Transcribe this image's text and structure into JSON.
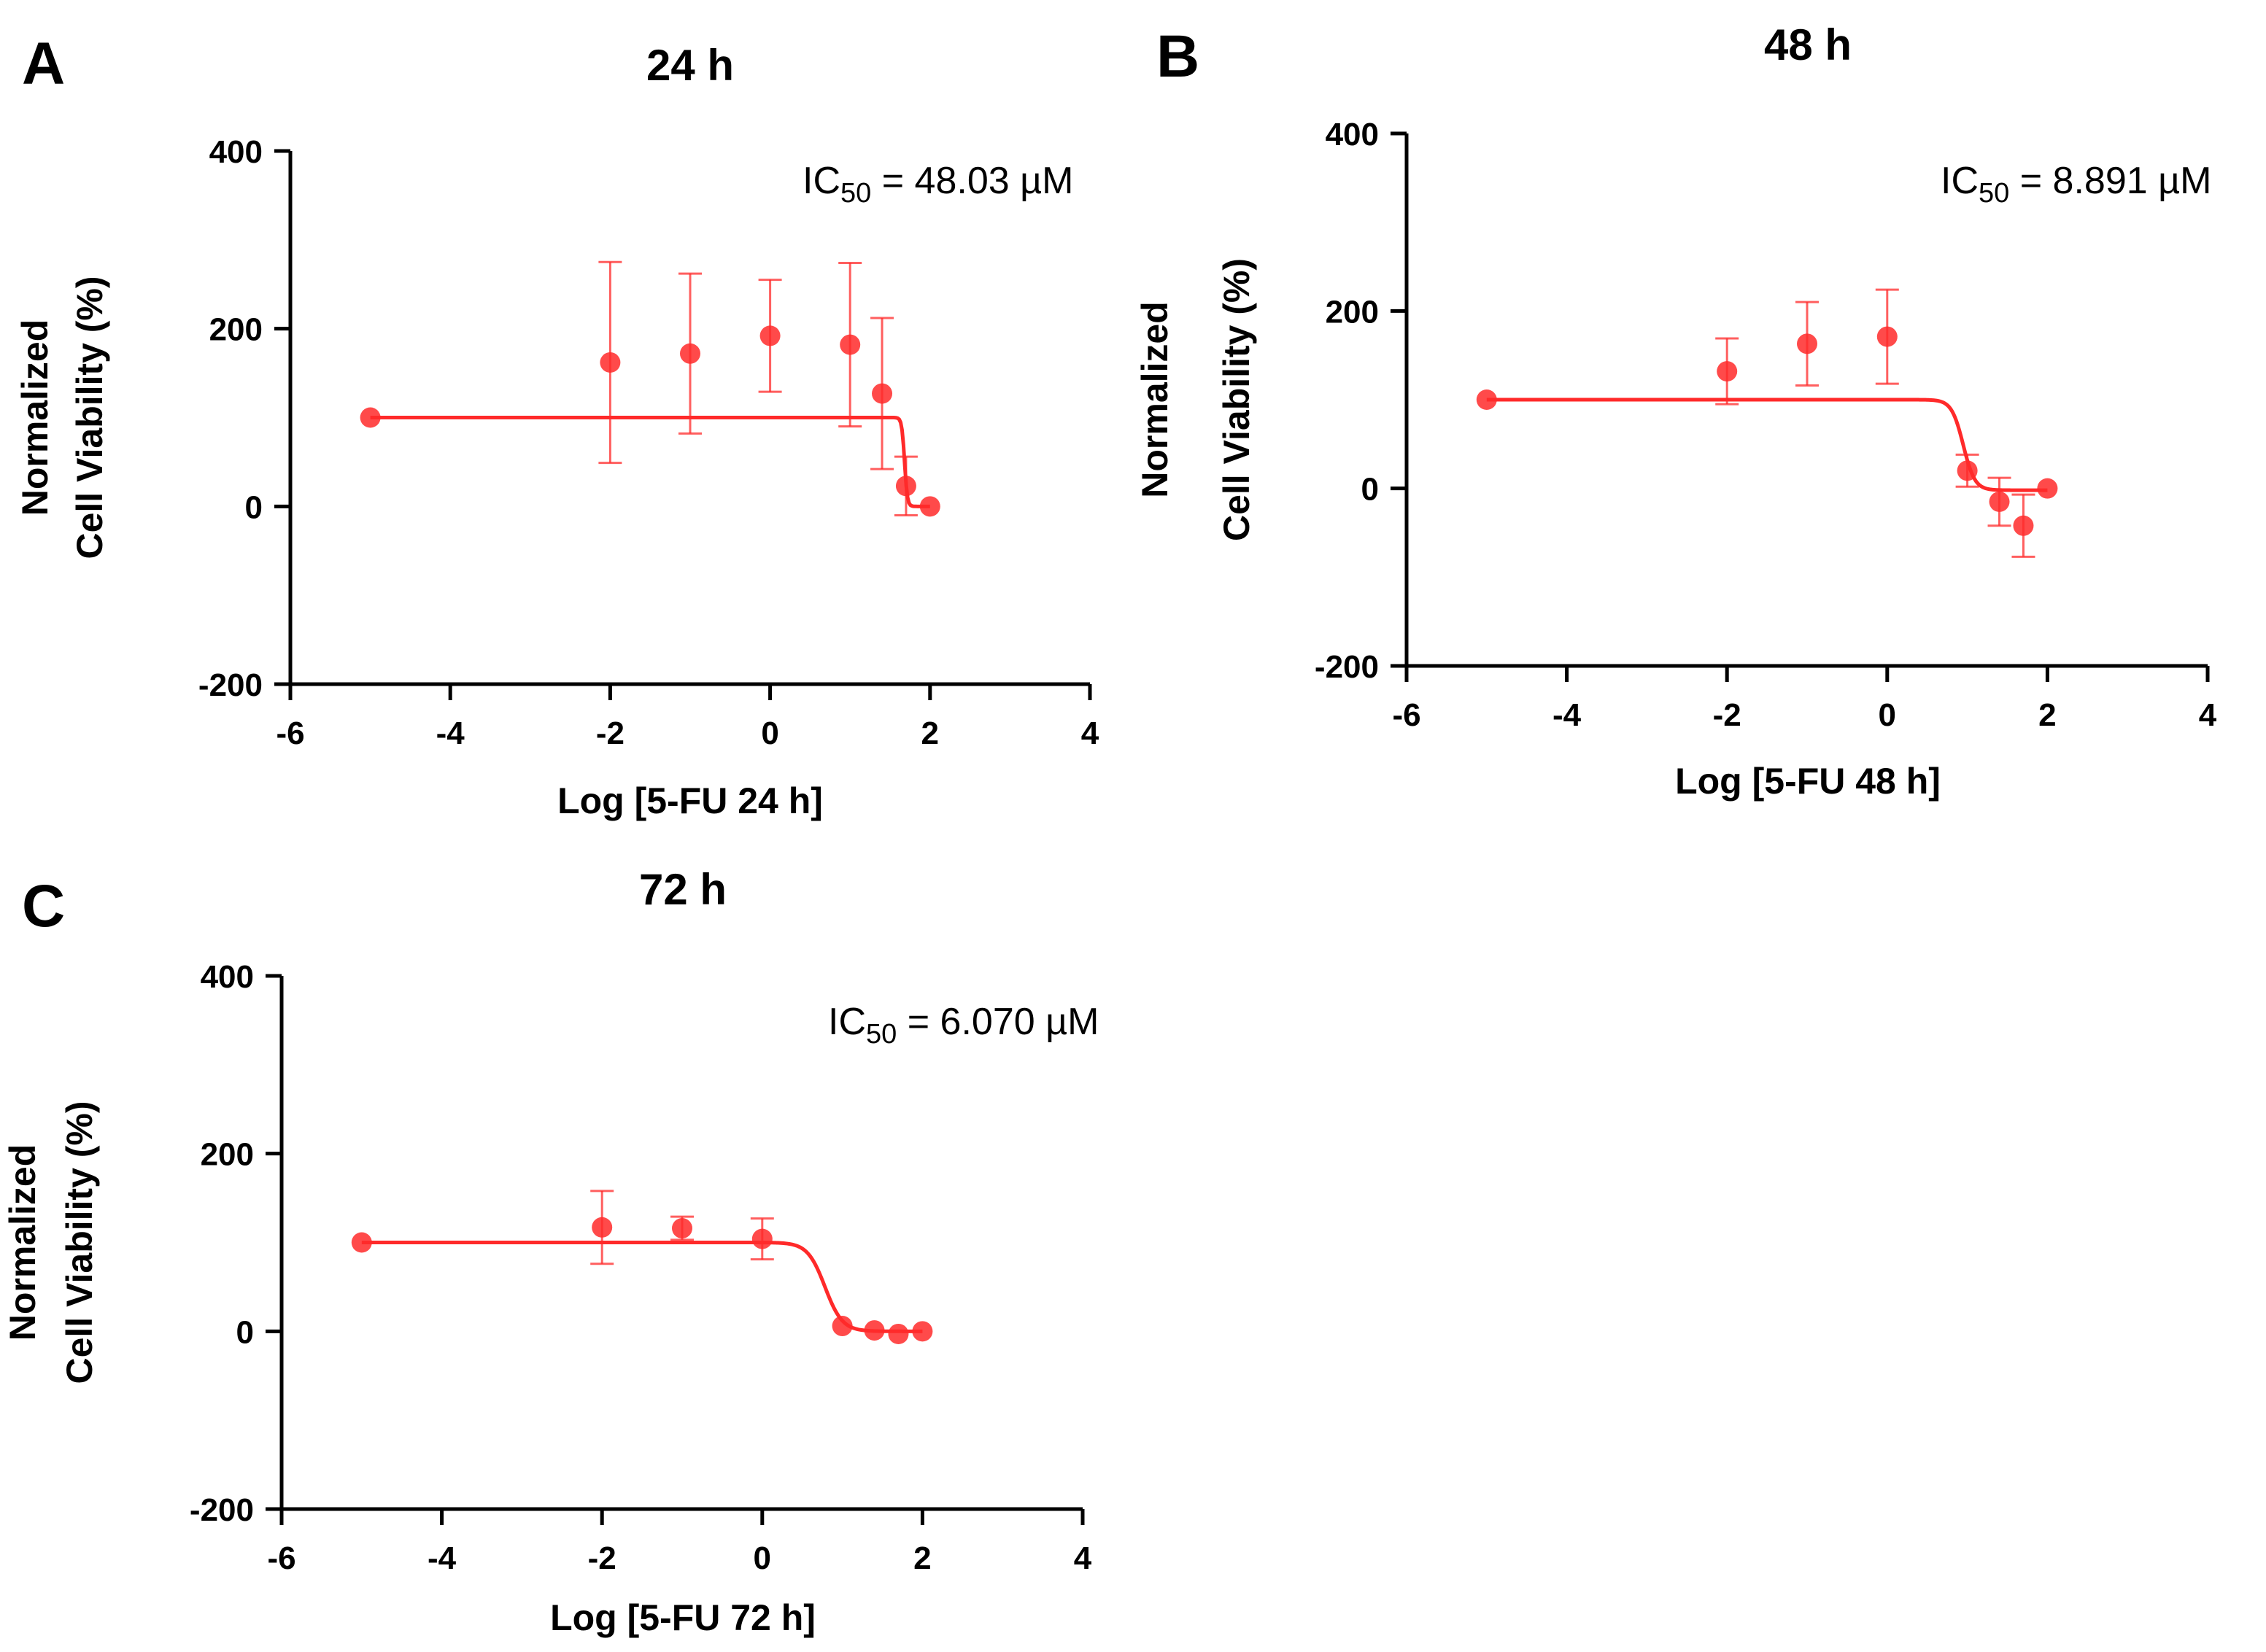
{
  "colors": {
    "series": "#ff2a2a",
    "axis": "#000000"
  },
  "chart_data": [
    {
      "type": "scatter",
      "panel_letter": "A",
      "title": "24 h",
      "xlabel": "Log [5-FU 24 h]",
      "ylabel_line1": "Normalized",
      "ylabel_line2": "Cell Viability (%)",
      "xlim": [
        -6,
        4
      ],
      "ylim": [
        -200,
        400
      ],
      "x_ticks": [
        -6,
        -4,
        -2,
        0,
        2,
        4
      ],
      "y_ticks": [
        -200,
        0,
        200,
        400
      ],
      "annotation": {
        "prefix": "IC",
        "subscript": "50",
        "suffix": " = 48.03 µM"
      },
      "points": [
        {
          "x": -5,
          "y": 100
        },
        {
          "x": -2,
          "y": 162,
          "err": 113
        },
        {
          "x": -1,
          "y": 172,
          "err": 90
        },
        {
          "x": 0,
          "y": 192,
          "err": 63
        },
        {
          "x": 1,
          "y": 182,
          "err": 92
        },
        {
          "x": 1.4,
          "y": 127,
          "err": 85
        },
        {
          "x": 1.7,
          "y": 23,
          "err": 33
        },
        {
          "x": 2,
          "y": 0
        }
      ],
      "fit": {
        "top": 100,
        "bottom": 0,
        "logIC50": 1.6816,
        "hill": -25
      }
    },
    {
      "type": "scatter",
      "panel_letter": "B",
      "title": "48 h",
      "xlabel": "Log [5-FU 48 h]",
      "ylabel_line1": "Normalized",
      "ylabel_line2": "Cell Viability (%)",
      "xlim": [
        -6,
        4
      ],
      "ylim": [
        -200,
        400
      ],
      "x_ticks": [
        -6,
        -4,
        -2,
        0,
        2,
        4
      ],
      "y_ticks": [
        -200,
        0,
        200,
        400
      ],
      "annotation": {
        "prefix": "IC",
        "subscript": "50",
        "suffix": " = 8.891 µM"
      },
      "points": [
        {
          "x": -5,
          "y": 100
        },
        {
          "x": -2,
          "y": 132,
          "err": 37
        },
        {
          "x": -1,
          "y": 163,
          "err": 47
        },
        {
          "x": 0,
          "y": 171,
          "err": 53
        },
        {
          "x": 1,
          "y": 20,
          "err": 18
        },
        {
          "x": 1.4,
          "y": -15,
          "err": 27
        },
        {
          "x": 1.7,
          "y": -42,
          "err": 35
        },
        {
          "x": 2,
          "y": 0
        }
      ],
      "fit": {
        "top": 100,
        "bottom": -2,
        "logIC50": 0.9489,
        "hill": -6
      }
    },
    {
      "type": "scatter",
      "panel_letter": "C",
      "title": "72 h",
      "xlabel": "Log [5-FU 72 h]",
      "ylabel_line1": "Normalized",
      "ylabel_line2": "Cell Viability (%)",
      "xlim": [
        -6,
        4
      ],
      "ylim": [
        -200,
        400
      ],
      "x_ticks": [
        -6,
        -4,
        -2,
        0,
        2,
        4
      ],
      "y_ticks": [
        -200,
        0,
        200,
        400
      ],
      "annotation": {
        "prefix": "IC",
        "subscript": "50",
        "suffix": " = 6.070 µM"
      },
      "points": [
        {
          "x": -5,
          "y": 100
        },
        {
          "x": -2,
          "y": 117,
          "err": 41
        },
        {
          "x": -1,
          "y": 116,
          "err": 13
        },
        {
          "x": 0,
          "y": 104,
          "err": 23
        },
        {
          "x": 1,
          "y": 6
        },
        {
          "x": 1.4,
          "y": 1
        },
        {
          "x": 1.7,
          "y": -3
        },
        {
          "x": 2,
          "y": 0
        }
      ],
      "fit": {
        "top": 100,
        "bottom": 0,
        "logIC50": 0.7832,
        "hill": -4
      }
    }
  ]
}
